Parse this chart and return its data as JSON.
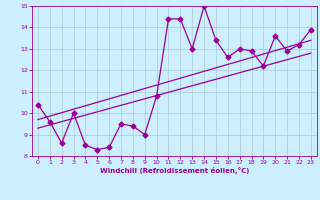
{
  "title": "",
  "xlabel": "Windchill (Refroidissement éolien,°C)",
  "xlim": [
    -0.5,
    23.5
  ],
  "ylim": [
    8,
    15
  ],
  "xticks": [
    0,
    1,
    2,
    3,
    4,
    5,
    6,
    7,
    8,
    9,
    10,
    11,
    12,
    13,
    14,
    15,
    16,
    17,
    18,
    19,
    20,
    21,
    22,
    23
  ],
  "yticks": [
    8,
    9,
    10,
    11,
    12,
    13,
    14,
    15
  ],
  "line_color": "#990099",
  "bg_color": "#cceeff",
  "grid_color": "#aacccc",
  "data_x": [
    0,
    1,
    2,
    3,
    4,
    5,
    6,
    7,
    8,
    9,
    10,
    11,
    12,
    13,
    14,
    15,
    16,
    17,
    18,
    19,
    20,
    21,
    22,
    23
  ],
  "data_y": [
    10.4,
    9.6,
    8.6,
    10.0,
    8.5,
    8.3,
    8.4,
    9.5,
    9.4,
    9.0,
    10.8,
    14.4,
    14.4,
    13.0,
    15.0,
    13.4,
    12.6,
    13.0,
    12.9,
    12.2,
    13.6,
    12.9,
    13.2,
    13.9
  ],
  "line1_x": [
    0,
    23
  ],
  "line1_y": [
    9.3,
    12.8
  ],
  "line2_x": [
    0,
    23
  ],
  "line2_y": [
    9.7,
    13.4
  ],
  "marker": "D",
  "markersize": 2.5,
  "linewidth": 0.9
}
